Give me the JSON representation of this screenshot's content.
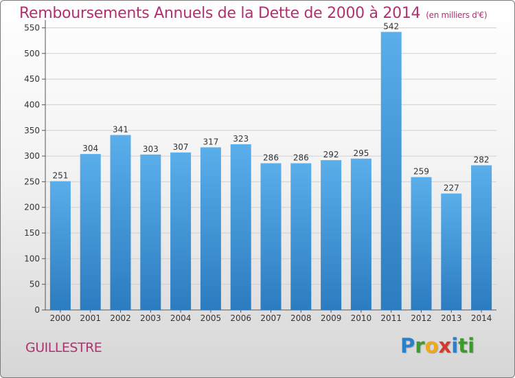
{
  "chart_data": {
    "type": "bar",
    "title": "Remboursements Annuels de la Dette de 2000 à 2014",
    "subtitle": "(en milliers d'€)",
    "categories": [
      "2000",
      "2001",
      "2002",
      "2003",
      "2004",
      "2005",
      "2006",
      "2007",
      "2008",
      "2009",
      "2010",
      "2011",
      "2012",
      "2013",
      "2014"
    ],
    "values": [
      251,
      304,
      341,
      303,
      307,
      317,
      323,
      286,
      286,
      292,
      295,
      542,
      259,
      227,
      282
    ],
    "ylim": [
      0,
      560
    ],
    "yticks": [
      0,
      50,
      100,
      150,
      200,
      250,
      300,
      350,
      400,
      450,
      500,
      550
    ],
    "grid": true,
    "bar_color": "#4c9fe0"
  },
  "footer": {
    "commune": "GUILLESTRE",
    "logo_letters": [
      "P",
      "r",
      "o",
      "x",
      "i",
      "t",
      "i"
    ]
  }
}
